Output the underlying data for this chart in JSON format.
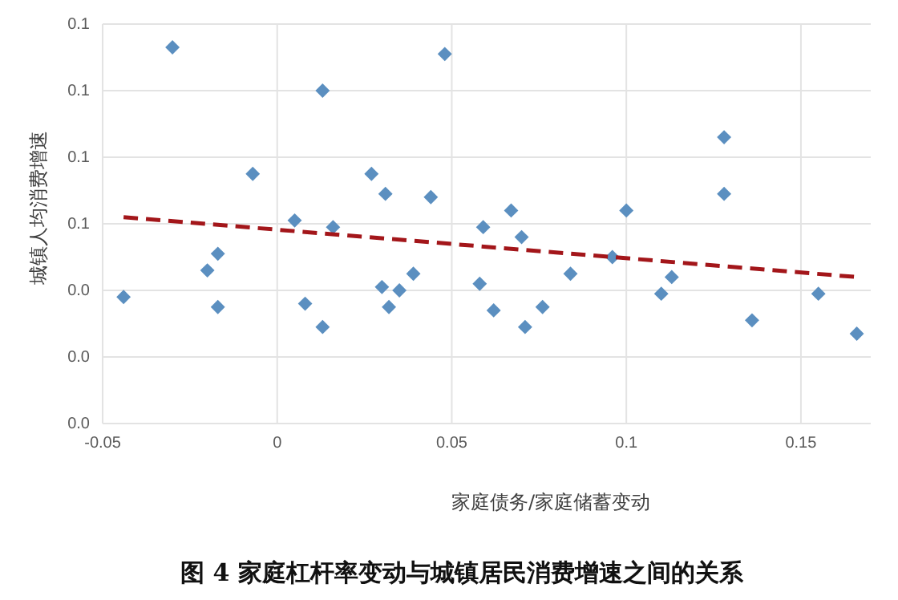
{
  "chart_data": {
    "type": "scatter",
    "title": "图 4 家庭杠杆率变动与城镇居民消费增速之间的关系",
    "xlabel": "家庭债务/家庭储蓄变动",
    "ylabel": "城镇人均消费增速",
    "xlim": [
      -0.05,
      0.17
    ],
    "xticks": [
      -0.05,
      0,
      0.05,
      0.1,
      0.15
    ],
    "ylim": [
      0,
      0.12
    ],
    "yticks": [
      {
        "value": 0,
        "label": "0.0"
      },
      {
        "value": 0.02,
        "label": "0.0"
      },
      {
        "value": 0.04,
        "label": "0.0"
      },
      {
        "value": 0.06,
        "label": "0.1"
      },
      {
        "value": 0.08,
        "label": "0.1"
      },
      {
        "value": 0.1,
        "label": "0.1"
      },
      {
        "value": 0.12,
        "label": "0.1"
      }
    ],
    "grid": true,
    "marker": "diamond",
    "series": [
      {
        "color": "#5b8fc0",
        "x": [
          -0.044,
          -0.03,
          0.013,
          -0.007,
          0.027,
          0.031,
          0.005,
          0.016,
          -0.02,
          -0.017,
          -0.017,
          0.008,
          0.013,
          0.03,
          0.032,
          0.035,
          0.039,
          0.044,
          0.048,
          0.058,
          0.059,
          0.062,
          0.067,
          0.07,
          0.071,
          0.076,
          0.084,
          0.096,
          0.1,
          0.11,
          0.113,
          0.128,
          0.128,
          0.136,
          0.155,
          0.166
        ],
        "values": [
          0.038,
          0.113,
          0.1,
          0.075,
          0.075,
          0.069,
          0.061,
          0.059,
          0.046,
          0.051,
          0.035,
          0.036,
          0.029,
          0.041,
          0.035,
          0.04,
          0.045,
          0.068,
          0.111,
          0.042,
          0.059,
          0.034,
          0.064,
          0.056,
          0.029,
          0.035,
          0.045,
          0.05,
          0.064,
          0.039,
          0.044,
          0.086,
          0.069,
          0.031,
          0.039,
          0.027
        ]
      },
      {
        "type": "line",
        "color": "#a3161a",
        "line_style": "dashed",
        "marker": "none",
        "x": [
          -0.044,
          0.166
        ],
        "values": [
          0.062,
          0.044
        ]
      }
    ]
  }
}
